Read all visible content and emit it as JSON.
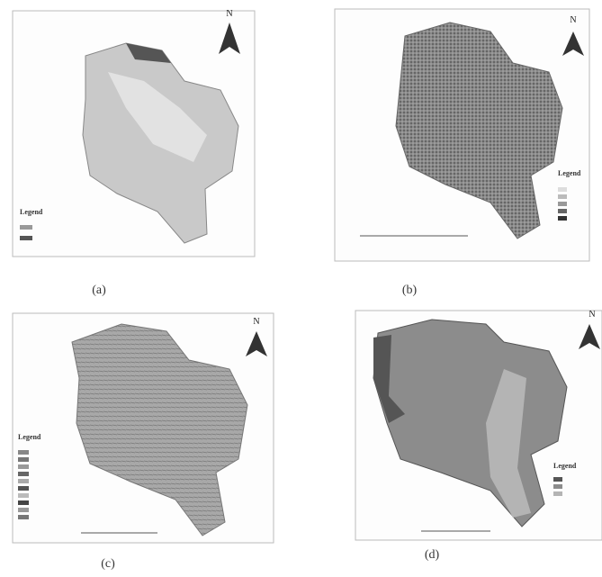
{
  "panels": [
    {
      "label": "(a)",
      "north": "N",
      "legend_title": "Legend"
    },
    {
      "label": "(b)",
      "north": "N",
      "legend_title": "Legend"
    },
    {
      "label": "(c)",
      "north": "N",
      "legend_title": "Legend"
    },
    {
      "label": "(d)",
      "north": "N",
      "legend_title": "Legend"
    }
  ]
}
